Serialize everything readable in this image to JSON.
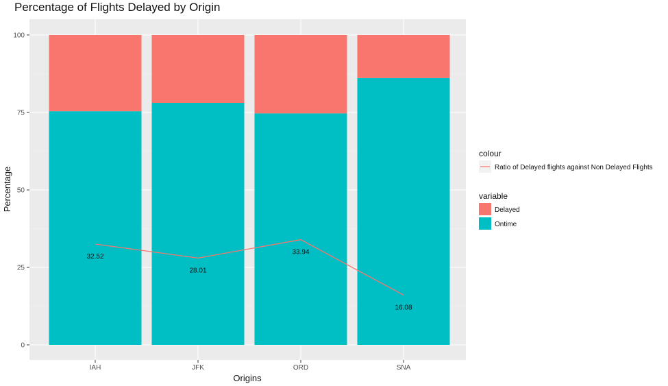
{
  "chart_data": {
    "type": "bar",
    "stacked": true,
    "title": "Percentage of Flights Delayed by Origin",
    "xlabel": "Origins",
    "ylabel": "Percentage",
    "categories": [
      "IAH",
      "JFK",
      "ORD",
      "SNA"
    ],
    "ylim": [
      0,
      100
    ],
    "yticks": [
      0,
      25,
      50,
      75,
      100
    ],
    "grid": true,
    "background": "#ebebeb",
    "series": [
      {
        "name": "Ontime",
        "values": [
          75.4,
          78.1,
          74.7,
          86.1
        ],
        "color": "#00bfc4"
      },
      {
        "name": "Delayed",
        "values": [
          24.6,
          21.9,
          25.3,
          13.9
        ],
        "color": "#f8766d"
      }
    ],
    "line": {
      "name": "Ratio of Delayed flights against Non Delayed Flights",
      "values": [
        32.52,
        28.01,
        33.94,
        16.08
      ],
      "labels": [
        "32.52",
        "28.01",
        "33.94",
        "16.08"
      ],
      "color": "#f8766d"
    },
    "legend": {
      "placement": "right",
      "colour_title": "colour",
      "fill_title": "variable",
      "fill_items": [
        "Delayed",
        "Ontime"
      ]
    }
  }
}
